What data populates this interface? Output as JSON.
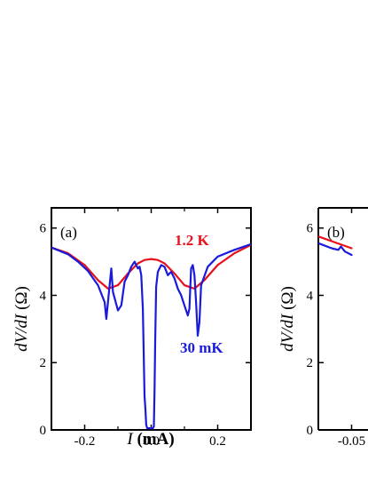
{
  "chart_data": [
    {
      "panel": "(a)",
      "type": "line",
      "xlabel": {
        "italic": "I",
        "normal": " (mA)"
      },
      "ylabel": {
        "italic": "dV/dI",
        "normal": " (Ω)"
      },
      "xlim": [
        -0.3,
        0.3
      ],
      "ylim": [
        0,
        6.6
      ],
      "xticks": [
        -0.2,
        0.0,
        0.2
      ],
      "xtick_labels": [
        "-0.2",
        "0.0",
        "0.2"
      ],
      "yticks": [
        0,
        2,
        4,
        6
      ],
      "ytick_labels": [
        "0",
        "2",
        "4",
        "6"
      ],
      "series": [
        {
          "name": "1.2 K",
          "color": "#e8101a",
          "x": [
            -0.3,
            -0.25,
            -0.2,
            -0.16,
            -0.13,
            -0.1,
            -0.07,
            -0.04,
            -0.02,
            0.0,
            0.02,
            0.04,
            0.07,
            0.1,
            0.13,
            0.16,
            0.2,
            0.25,
            0.3
          ],
          "y": [
            5.42,
            5.25,
            4.9,
            4.45,
            4.2,
            4.3,
            4.65,
            4.95,
            5.05,
            5.08,
            5.05,
            4.95,
            4.65,
            4.3,
            4.2,
            4.45,
            4.9,
            5.25,
            5.5
          ]
        },
        {
          "name": "30 mK",
          "color": "#1a1adc",
          "x": [
            -0.3,
            -0.25,
            -0.22,
            -0.19,
            -0.16,
            -0.14,
            -0.135,
            -0.12,
            -0.115,
            -0.1,
            -0.09,
            -0.08,
            -0.07,
            -0.06,
            -0.05,
            -0.045,
            -0.04,
            -0.035,
            -0.03,
            -0.025,
            -0.02,
            -0.018,
            -0.015,
            -0.012,
            0.0,
            0.005,
            0.008,
            0.01,
            0.012,
            0.015,
            0.02,
            0.03,
            0.04,
            0.05,
            0.06,
            0.07,
            0.08,
            0.09,
            0.1,
            0.11,
            0.115,
            0.12,
            0.125,
            0.13,
            0.135,
            0.14,
            0.145,
            0.15,
            0.17,
            0.2,
            0.25,
            0.3
          ],
          "y": [
            5.42,
            5.22,
            5.0,
            4.72,
            4.3,
            3.8,
            3.3,
            4.8,
            4.1,
            3.55,
            3.7,
            4.4,
            4.6,
            4.85,
            5.0,
            4.9,
            4.8,
            4.85,
            4.6,
            3.6,
            1.0,
            0.7,
            0.15,
            0.05,
            0.05,
            0.05,
            0.1,
            1.2,
            2.6,
            4.25,
            4.7,
            4.9,
            4.85,
            4.6,
            4.7,
            4.5,
            4.2,
            4.0,
            3.7,
            3.4,
            3.6,
            4.8,
            4.9,
            4.6,
            3.8,
            2.8,
            3.2,
            4.3,
            4.85,
            5.15,
            5.35,
            5.52
          ]
        }
      ]
    },
    {
      "panel": "(b)",
      "type": "line",
      "ylabel": {
        "italic": "dV/dI",
        "normal": " (Ω)"
      },
      "xlim": [
        -0.075,
        0.075
      ],
      "ylim": [
        0,
        6.6
      ],
      "xticks": [
        -0.05
      ],
      "xtick_labels": [
        "-0.05"
      ],
      "yticks": [
        0,
        2,
        4,
        6
      ],
      "ytick_labels": [
        "0",
        "2",
        "4",
        "6"
      ],
      "series": [
        {
          "color": "#e8101a",
          "x": [
            -0.075,
            -0.05
          ],
          "y": [
            5.75,
            5.4
          ]
        },
        {
          "color": "#1a1adc",
          "x": [
            -0.075,
            -0.065,
            -0.06,
            -0.058,
            -0.055,
            -0.05
          ],
          "y": [
            5.55,
            5.4,
            5.35,
            5.45,
            5.3,
            5.2
          ]
        }
      ]
    }
  ]
}
